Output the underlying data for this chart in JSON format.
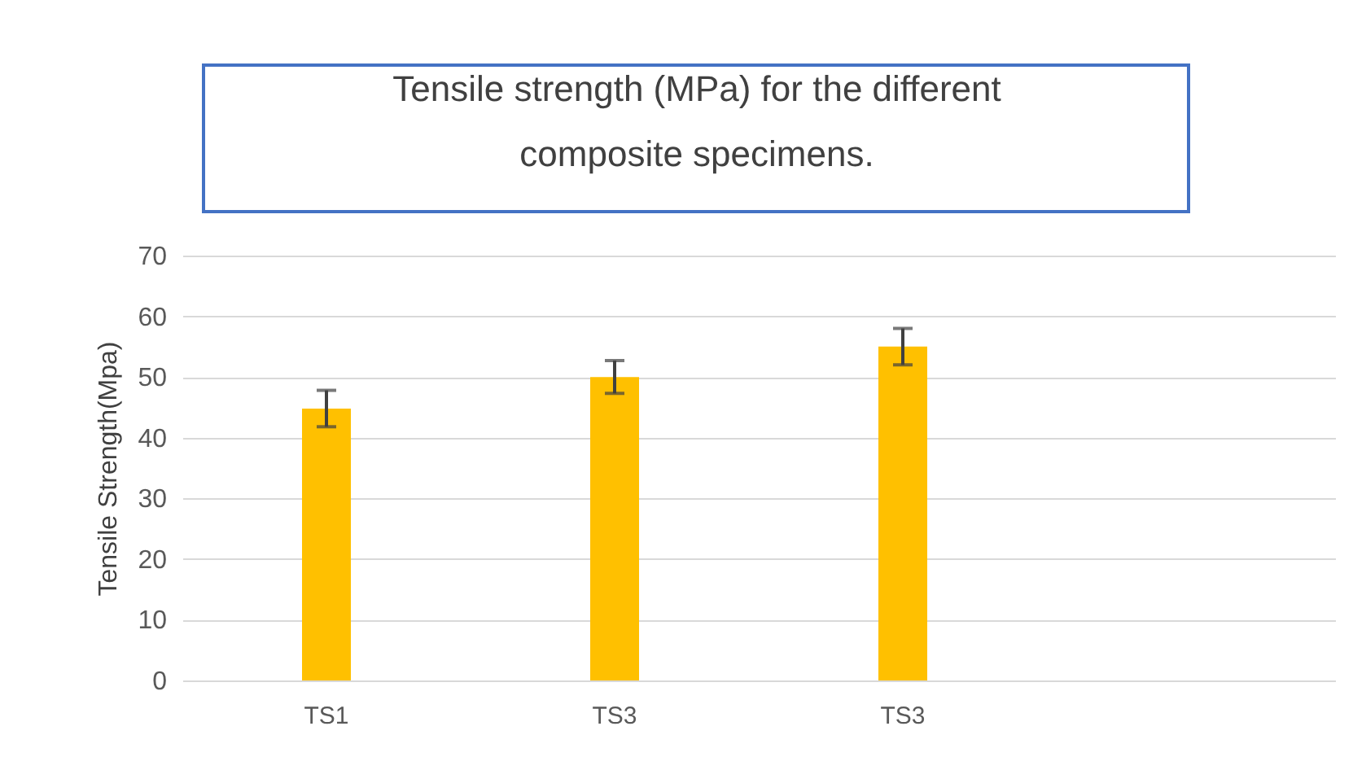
{
  "chart_data": {
    "type": "bar",
    "title": "Tensile strength (MPa) for the different composite specimens.",
    "ylabel": "Tensile Strength(Mpa)",
    "categories": [
      "TS1",
      "TS3",
      "TS3",
      null
    ],
    "values": [
      44.8,
      50,
      55,
      null
    ],
    "errors": [
      3,
      2.7,
      3,
      null
    ],
    "color": "#ffc000",
    "ylim": [
      0,
      70
    ],
    "yticks": [
      0,
      10,
      20,
      30,
      40,
      50,
      60,
      70
    ],
    "grid": "y"
  }
}
